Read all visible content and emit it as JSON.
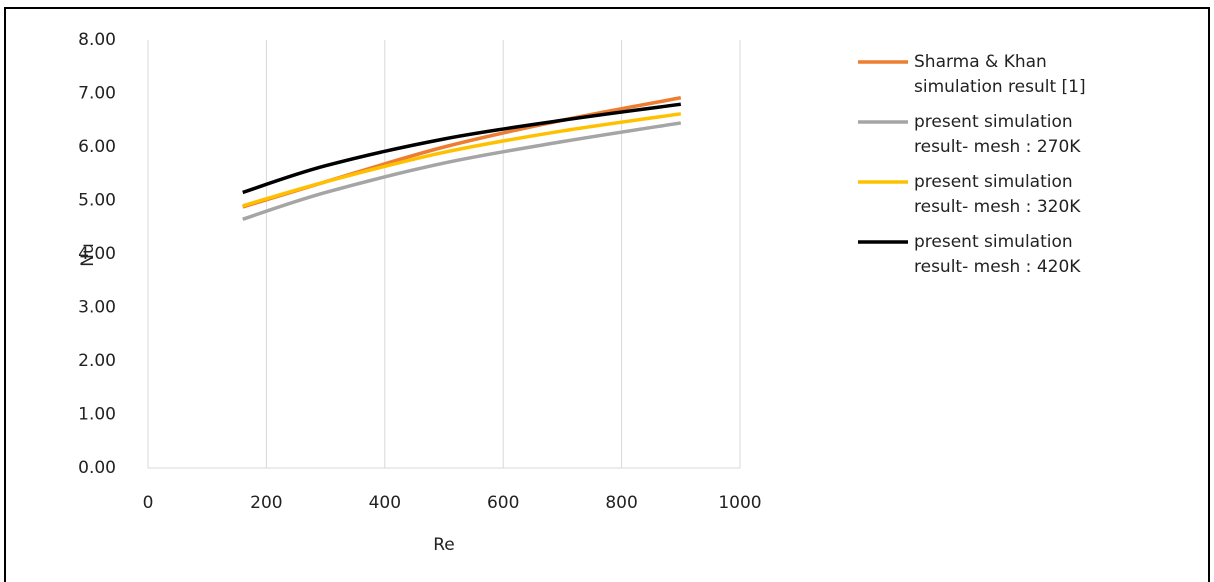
{
  "chart_data": {
    "type": "line",
    "x_label": "Re",
    "y_label": "Nu",
    "x": [
      160,
      300,
      500,
      700,
      900
    ],
    "series": [
      {
        "name": "Sharma & Khan simulation result [1]",
        "color": "#ed7d31",
        "values": [
          4.88,
          5.35,
          6.0,
          6.5,
          6.92
        ]
      },
      {
        "name": "present simulation result- mesh : 270K",
        "color": "#a5a5a5",
        "values": [
          4.65,
          5.15,
          5.7,
          6.1,
          6.45
        ]
      },
      {
        "name": "present simulation result- mesh : 320K",
        "color": "#ffc000",
        "values": [
          4.9,
          5.35,
          5.9,
          6.3,
          6.62
        ]
      },
      {
        "name": "present simulation result- mesh : 420K",
        "color": "#000000",
        "values": [
          5.15,
          5.65,
          6.15,
          6.5,
          6.8
        ]
      }
    ],
    "xlim": [
      0,
      1000
    ],
    "xticks": [
      0,
      200,
      400,
      600,
      800,
      1000
    ],
    "ylim": [
      0,
      8
    ],
    "yticks": [
      {
        "value": 0,
        "label": "0.00"
      },
      {
        "value": 1,
        "label": "1.00"
      },
      {
        "value": 2,
        "label": "2.00"
      },
      {
        "value": 3,
        "label": "3.00"
      },
      {
        "value": 4,
        "label": "4.00"
      },
      {
        "value": 5,
        "label": "5.00"
      },
      {
        "value": 6,
        "label": "6.00"
      },
      {
        "value": 7,
        "label": "7.00"
      },
      {
        "value": 8,
        "label": "8.00"
      }
    ],
    "grid": "x"
  }
}
